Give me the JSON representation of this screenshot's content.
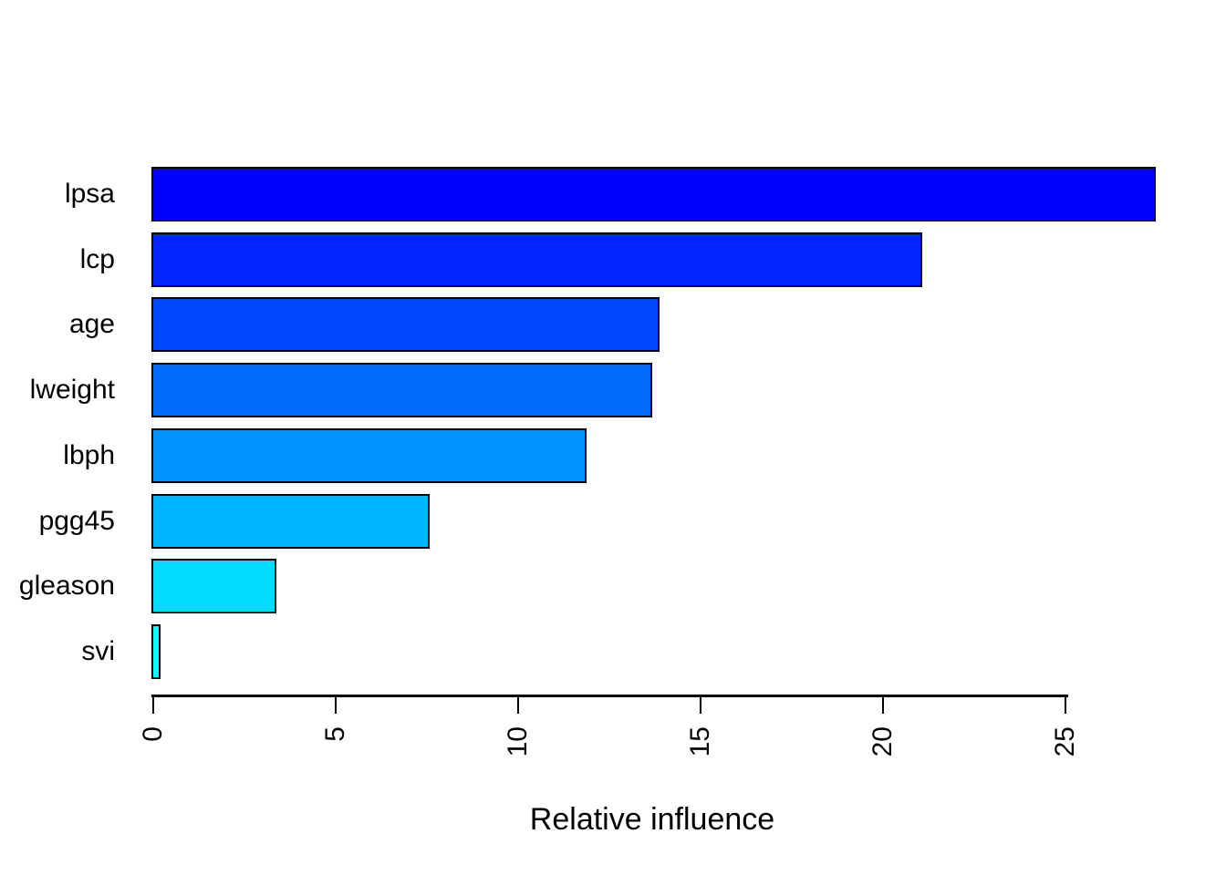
{
  "chart_data": {
    "type": "bar",
    "orientation": "horizontal",
    "title": "",
    "xlabel": "Relative influence",
    "ylabel": "",
    "categories": [
      "lpsa",
      "lcp",
      "age",
      "lweight",
      "lbph",
      "pgg45",
      "gleason",
      "svi"
    ],
    "values": [
      27.4,
      21.0,
      13.8,
      13.6,
      11.8,
      7.5,
      3.3,
      0.12
    ],
    "bar_colors": [
      "#0000ff",
      "#0025ff",
      "#0049ff",
      "#006dff",
      "#0092ff",
      "#00b6ff",
      "#00dbff",
      "#00ffff"
    ],
    "bar_border_color": "#000000",
    "x_ticks": [
      0,
      5,
      10,
      15,
      20,
      25
    ],
    "x_tick_labels": [
      "0",
      "5",
      "10",
      "15",
      "20",
      "25"
    ],
    "xlim": [
      0,
      25
    ],
    "grid": false,
    "legend": false,
    "tick_label_rotation_deg": 90,
    "background_color": "#ffffff",
    "text_color": "#000000"
  }
}
